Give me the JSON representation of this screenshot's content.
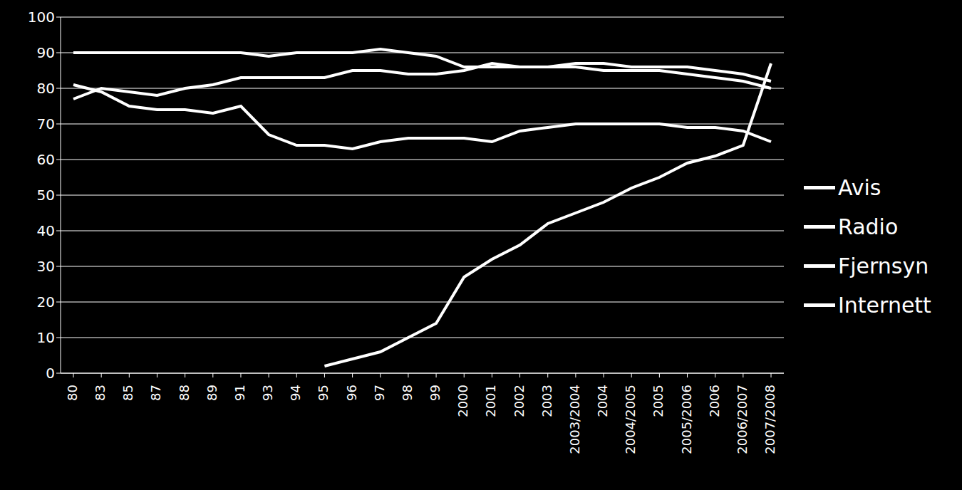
{
  "chart_data": {
    "type": "line",
    "categories": [
      "80",
      "83",
      "85",
      "87",
      "88",
      "89",
      "91",
      "93",
      "94",
      "95",
      "96",
      "97",
      "98",
      "99",
      "2000",
      "2001",
      "2002",
      "2003",
      "2003/2004",
      "2004",
      "2004/2005",
      "2005",
      "2005/2006",
      "2006",
      "2006/2007",
      "2007/2008"
    ],
    "series": [
      {
        "name": "Avis",
        "color": "#ffffff",
        "values": [
          90,
          90,
          90,
          90,
          90,
          90,
          90,
          89,
          90,
          90,
          90,
          91,
          90,
          89,
          86,
          86,
          86,
          86,
          86,
          85,
          85,
          85,
          84,
          83,
          82,
          80
        ]
      },
      {
        "name": "Radio",
        "color": "#ffffff",
        "values": [
          81,
          79,
          75,
          74,
          74,
          73,
          75,
          67,
          64,
          64,
          63,
          65,
          66,
          66,
          66,
          65,
          68,
          69,
          70,
          70,
          70,
          70,
          69,
          69,
          68,
          65
        ]
      },
      {
        "name": "Fjernsyn",
        "color": "#ffffff",
        "values": [
          77,
          80,
          79,
          78,
          80,
          81,
          83,
          83,
          83,
          83,
          85,
          85,
          84,
          84,
          85,
          87,
          86,
          86,
          87,
          87,
          86,
          86,
          86,
          85,
          84,
          82
        ]
      },
      {
        "name": "Internett",
        "color": "#ffffff",
        "values": [
          null,
          null,
          null,
          null,
          null,
          null,
          null,
          null,
          null,
          2,
          4,
          6,
          10,
          14,
          27,
          32,
          36,
          42,
          45,
          48,
          52,
          55,
          59,
          61,
          64,
          87
        ]
      }
    ],
    "ylim": [
      0,
      100
    ],
    "yticks": [
      0,
      10,
      20,
      30,
      40,
      50,
      60,
      70,
      80,
      90,
      100
    ],
    "grid": true,
    "legend": "right"
  }
}
